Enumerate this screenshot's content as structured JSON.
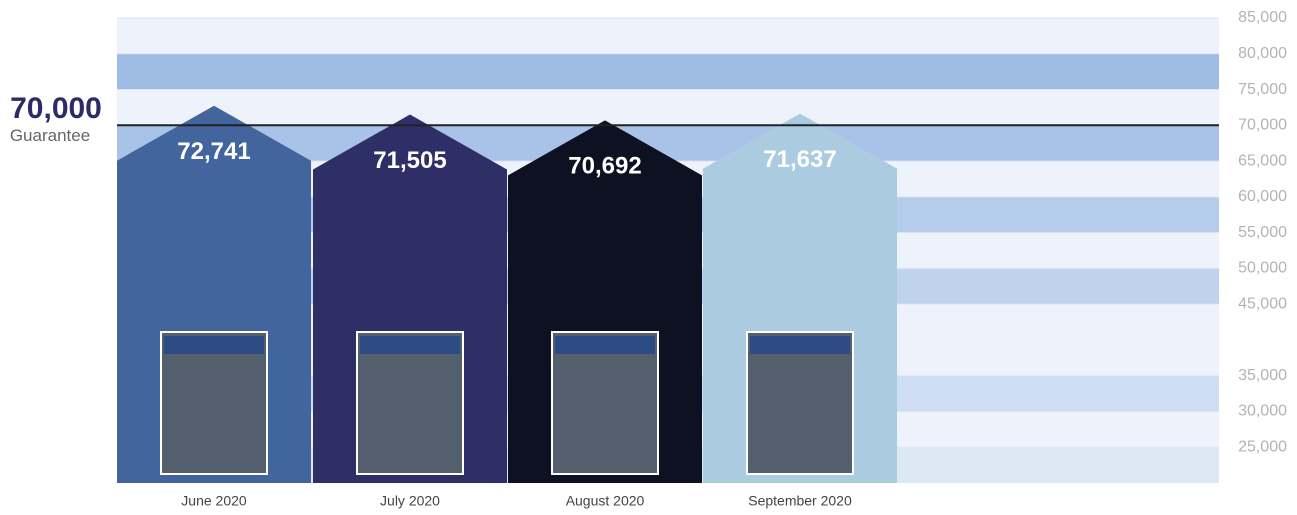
{
  "chart_data": {
    "type": "house-bar",
    "categories": [
      "June 2020",
      "July 2020",
      "August 2020",
      "September 2020"
    ],
    "values": [
      72741,
      71505,
      70692,
      71637
    ],
    "value_labels": [
      "72,741",
      "71,505",
      "70,692",
      "71,637"
    ],
    "colors": [
      "#42659d",
      "#2e2f66",
      "#0e1121",
      "#abcbe0"
    ],
    "ylim": [
      20000,
      85000
    ],
    "yticks": [
      {
        "value": 85000,
        "label": "85,000"
      },
      {
        "value": 80000,
        "label": "80,000"
      },
      {
        "value": 75000,
        "label": "75,000"
      },
      {
        "value": 70000,
        "label": "70,000"
      },
      {
        "value": 65000,
        "label": "65,000"
      },
      {
        "value": 60000,
        "label": "60,000"
      },
      {
        "value": 55000,
        "label": "55,000"
      },
      {
        "value": 50000,
        "label": "50,000"
      },
      {
        "value": 45000,
        "label": "45,000"
      },
      {
        "value": 35000,
        "label": "35,000"
      },
      {
        "value": 30000,
        "label": "30,000"
      },
      {
        "value": 25000,
        "label": "25,000"
      }
    ],
    "guarantee": {
      "value": 70000,
      "label": "70,000",
      "text": "Guarantee"
    }
  }
}
